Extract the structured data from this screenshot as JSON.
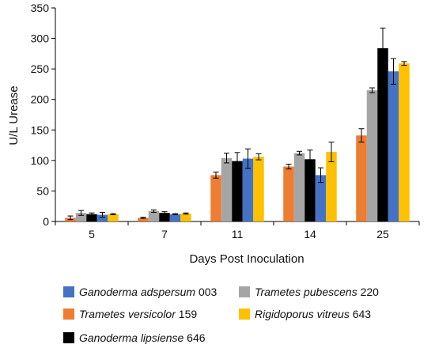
{
  "chart_data": {
    "type": "bar",
    "xlabel": "Days Post Inoculation",
    "ylabel": "U/L Urease",
    "ylim": [
      0,
      350
    ],
    "yticks": [
      0,
      50,
      100,
      150,
      200,
      250,
      300,
      350
    ],
    "categories": [
      "5",
      "7",
      "11",
      "14",
      "25"
    ],
    "series": [
      {
        "name": "Trametes versicolor 159",
        "color": "#ED7D31",
        "values": [
          6,
          6,
          76,
          90,
          141
        ],
        "errors": [
          3,
          1,
          5,
          4,
          11
        ]
      },
      {
        "name": "Trametes pubescens 220",
        "color": "#A5A5A5",
        "values": [
          14,
          17,
          104,
          112,
          215
        ],
        "errors": [
          4,
          2,
          8,
          3,
          4
        ]
      },
      {
        "name": "Ganoderma lipsiense 646",
        "color": "#000000",
        "values": [
          12,
          14,
          99,
          102,
          284
        ],
        "errors": [
          2,
          2,
          14,
          15,
          33
        ]
      },
      {
        "name": "Ganoderma adspersum 003",
        "color": "#4472C4",
        "values": [
          11,
          12,
          103,
          76,
          246
        ],
        "errors": [
          4,
          1,
          16,
          12,
          21
        ]
      },
      {
        "name": "Rigidoporus vitreus 643",
        "color": "#FFC000",
        "values": [
          12,
          13,
          106,
          114,
          259
        ],
        "errors": [
          1,
          1,
          5,
          16,
          3
        ]
      }
    ],
    "legend": [
      {
        "italic": "Ganoderma adspersum",
        "suffix": " 003",
        "color": "#4472C4"
      },
      {
        "italic": "Trametes pubescens",
        "suffix": " 220",
        "color": "#A5A5A5"
      },
      {
        "italic": "Trametes versicolor",
        "suffix": " 159",
        "color": "#ED7D31"
      },
      {
        "italic": "Rigidoporus vitreus",
        "suffix": " 643",
        "color": "#FFC000"
      },
      {
        "italic": "Ganoderma lipsiense",
        "suffix": " 646",
        "color": "#000000"
      }
    ],
    "legend_placement": "bottom",
    "grid": false
  }
}
